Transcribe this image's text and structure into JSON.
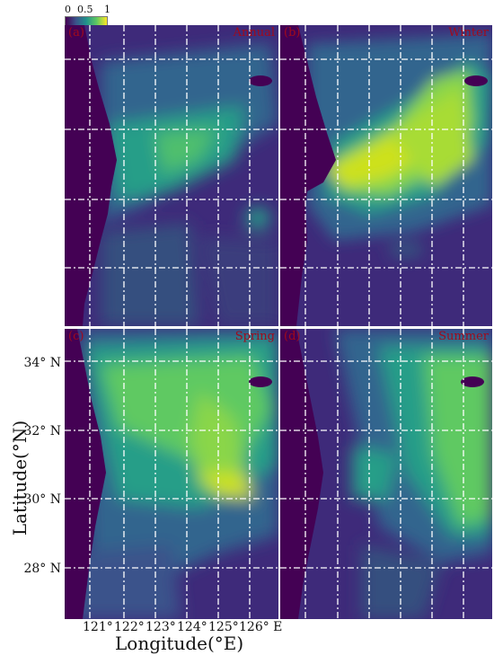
{
  "colorbar": {
    "ticks": [
      "0",
      "0.5",
      "1"
    ],
    "colors": [
      "#440154",
      "#3b528b",
      "#21918c",
      "#5ec962",
      "#fde725"
    ]
  },
  "panels": [
    {
      "letter": "(a)",
      "season": "Annual"
    },
    {
      "letter": "(b)",
      "season": "Winter"
    },
    {
      "letter": "(c)",
      "season": "Spring"
    },
    {
      "letter": "(d)",
      "season": "Summer"
    }
  ],
  "y_ticks": [
    "34° N",
    "32° N",
    "30° N",
    "28° N"
  ],
  "x_ticks": [
    "121°",
    "122°",
    "123°",
    "124°",
    "125°",
    "126° E"
  ],
  "x_axis_title": "Longitude(°E)",
  "y_axis_title": "Latitude(°N)",
  "palette": {
    "land": "#440154",
    "deep": "#3e2a7a",
    "mid": "#32658e",
    "teal": "#259e88",
    "green": "#6ccf5a",
    "yellow": "#cde11d",
    "grid": "#ffffff",
    "label_red": "#a00a1c"
  }
}
